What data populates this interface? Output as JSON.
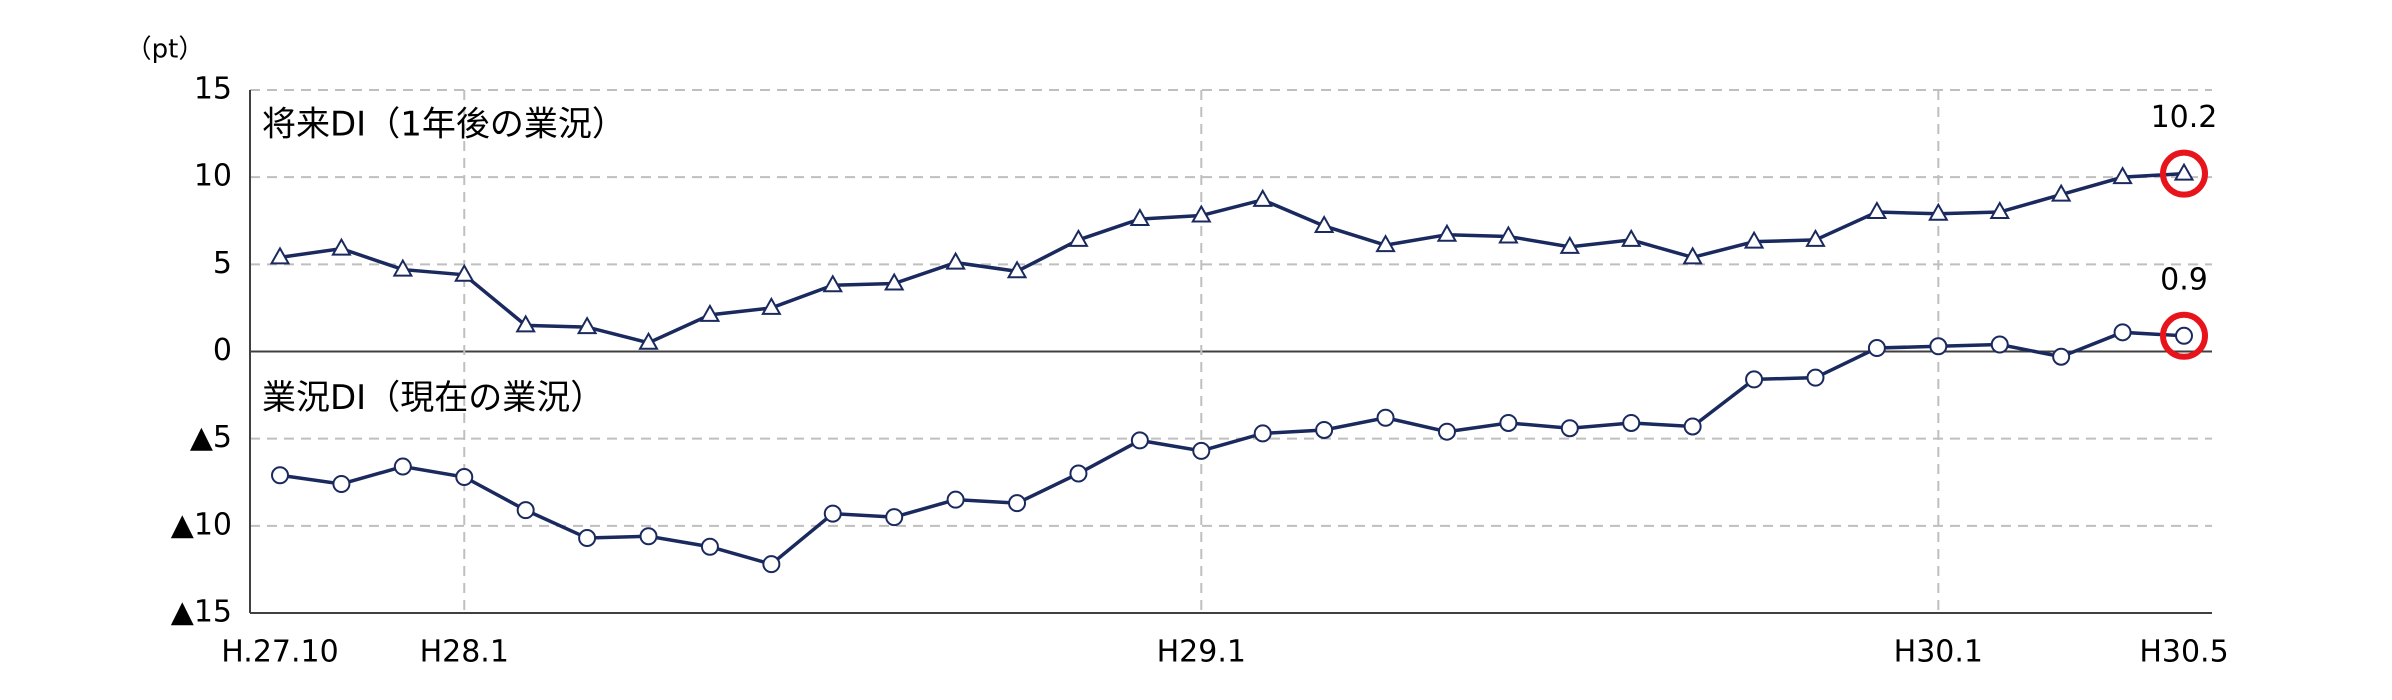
{
  "chart_data": {
    "type": "line",
    "unit_label": "（pt）",
    "categories": [
      "H.27.10",
      null,
      null,
      "H28.1",
      null,
      null,
      null,
      null,
      null,
      null,
      null,
      null,
      null,
      null,
      null,
      "H29.1",
      null,
      null,
      null,
      null,
      null,
      null,
      null,
      null,
      null,
      null,
      null,
      "H30.1",
      null,
      null,
      null,
      "H30.5"
    ],
    "series": [
      {
        "name": "将来DI（1年後の業況）",
        "color": "#1b2a5e",
        "marker": "triangle",
        "values": [
          5.4,
          5.9,
          4.7,
          4.4,
          1.5,
          1.4,
          0.5,
          2.1,
          2.5,
          3.8,
          3.9,
          5.1,
          4.6,
          6.4,
          7.6,
          7.8,
          8.7,
          7.2,
          6.1,
          6.7,
          6.6,
          6.0,
          6.4,
          5.4,
          6.3,
          6.4,
          8.0,
          7.9,
          8.0,
          9.0,
          10.0,
          10.2
        ],
        "value_labels": [
          null,
          null,
          null,
          null,
          null,
          null,
          null,
          null,
          null,
          null,
          null,
          null,
          null,
          null,
          null,
          null,
          null,
          null,
          null,
          null,
          null,
          null,
          null,
          null,
          null,
          null,
          null,
          null,
          null,
          null,
          null,
          "10.2"
        ]
      },
      {
        "name": "業況DI（現在の業況）",
        "color": "#1b2a5e",
        "marker": "circle",
        "values": [
          -7.1,
          -7.6,
          -6.6,
          -7.2,
          -9.1,
          -10.7,
          -10.6,
          -11.2,
          -12.2,
          -9.3,
          -9.5,
          -8.5,
          -8.7,
          -7.0,
          -5.1,
          -5.7,
          -4.7,
          -4.5,
          -3.8,
          -4.6,
          -4.1,
          -4.4,
          -4.1,
          -4.3,
          -1.6,
          -1.5,
          0.2,
          0.3,
          0.4,
          -0.3,
          1.1,
          0.9
        ],
        "value_labels": [
          null,
          null,
          null,
          null,
          null,
          null,
          null,
          null,
          null,
          null,
          null,
          null,
          null,
          null,
          null,
          null,
          null,
          null,
          null,
          null,
          null,
          null,
          null,
          null,
          null,
          null,
          null,
          null,
          null,
          null,
          null,
          "0.9"
        ]
      }
    ],
    "ylim": [
      -15,
      15
    ],
    "yticks": [
      {
        "value": -15,
        "label": "▲15"
      },
      {
        "value": -10,
        "label": "▲10"
      },
      {
        "value": -5,
        "label": "▲5"
      },
      0,
      5,
      10,
      15
    ],
    "grid": true,
    "highlight_color": "#e8141c"
  }
}
